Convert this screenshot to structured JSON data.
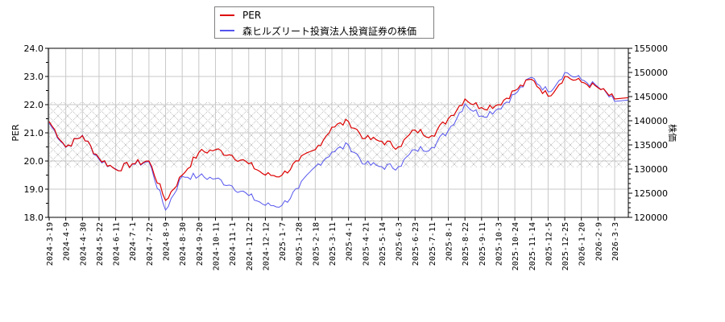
{
  "legend": {
    "items": [
      {
        "label": "PER",
        "color": "#dd0000"
      },
      {
        "label": "森ヒルズリート投資法人投資証券の株価",
        "color": "#5555ee"
      }
    ]
  },
  "axes": {
    "left_title": "PER",
    "right_title": "株価",
    "left_ticks": [
      "24.0",
      "23.0",
      "22.0",
      "21.0",
      "20.0",
      "19.0",
      "18.0"
    ],
    "right_ticks": [
      "155000",
      "150000",
      "145000",
      "140000",
      "135000",
      "130000",
      "125000",
      "120000"
    ],
    "x_ticks": [
      "2024-3-19",
      "2024-4-9",
      "2024-4-30",
      "2024-5-22",
      "2024-6-11",
      "2024-7-1",
      "2024-7-22",
      "2024-8-9",
      "2024-8-30",
      "2024-9-20",
      "2024-10-11",
      "2024-11-1",
      "2024-11-22",
      "2024-12-12",
      "2025-1-7",
      "2025-1-28",
      "2025-2-18",
      "2025-3-11",
      "2025-4-1",
      "2025-4-21",
      "2025-5-14",
      "2025-6-3",
      "2025-6-23",
      "2025-7-11",
      "2025-8-1",
      "2025-8-22",
      "2025-9-11",
      "2025-10-3",
      "2025-10-24",
      "2025-11-14",
      "2025-12-5",
      "2025-12-25",
      "2026-1-20",
      "2026-2-9",
      "2026-3-3"
    ]
  },
  "chart_data": {
    "type": "line",
    "title": "",
    "xlabel": "",
    "ylabel": "PER",
    "y2label": "株価",
    "ylim": [
      18.0,
      24.0
    ],
    "y2lim": [
      120000,
      155000
    ],
    "grid": true,
    "legend_position": "top-center",
    "shaded_band": {
      "axis": "PER",
      "from": 19.77,
      "to": 22.09,
      "style": "crosshatch"
    },
    "x": [
      "2024-3-19",
      "2024-4-9",
      "2024-4-30",
      "2024-5-22",
      "2024-6-11",
      "2024-7-1",
      "2024-7-22",
      "2024-8-9",
      "2024-8-30",
      "2024-9-20",
      "2024-10-11",
      "2024-11-1",
      "2024-11-22",
      "2024-12-12",
      "2025-1-7",
      "2025-1-28",
      "2025-2-18",
      "2025-3-11",
      "2025-4-1",
      "2025-4-21",
      "2025-5-14",
      "2025-6-3",
      "2025-6-23",
      "2025-7-11",
      "2025-8-1",
      "2025-8-22",
      "2025-9-11",
      "2025-10-3",
      "2025-10-24",
      "2025-11-14",
      "2025-12-5",
      "2025-12-25",
      "2026-1-20",
      "2026-2-9",
      "2026-3-3"
    ],
    "series": [
      {
        "name": "PER",
        "axis": "left",
        "color": "#dd0000",
        "values": [
          21.4,
          20.5,
          20.9,
          20.1,
          19.7,
          19.9,
          20.0,
          18.6,
          19.5,
          20.3,
          20.4,
          20.2,
          19.9,
          19.5,
          19.5,
          20.0,
          20.4,
          21.2,
          21.4,
          20.8,
          20.7,
          20.5,
          21.1,
          20.9,
          21.5,
          22.2,
          21.9,
          22.0,
          22.5,
          22.9,
          22.3,
          23.0,
          22.8,
          22.6,
          22.2
        ]
      },
      {
        "name": "森ヒルズリート投資法人投資証券の株価",
        "axis": "right",
        "color": "#5555ee",
        "values": [
          139500,
          134500,
          137000,
          132000,
          130000,
          131000,
          131500,
          121500,
          128500,
          128500,
          128000,
          126500,
          124500,
          122500,
          122500,
          126000,
          130500,
          133500,
          135000,
          131000,
          130500,
          130500,
          134000,
          134500,
          138000,
          143500,
          141000,
          142500,
          145500,
          149000,
          146000,
          150000,
          148500,
          147000,
          144000
        ]
      }
    ]
  }
}
